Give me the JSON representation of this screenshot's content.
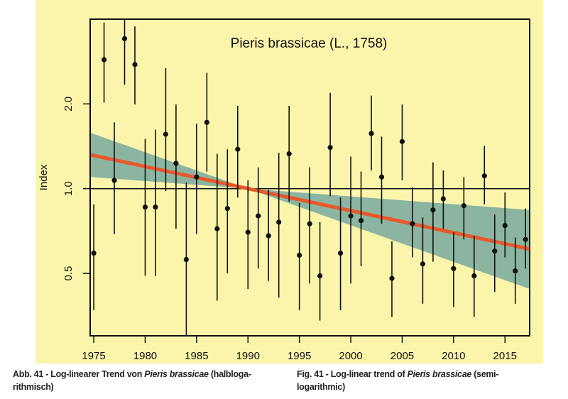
{
  "chart_data": {
    "type": "scatter",
    "title": "Pieris brassicae (L., 1758)",
    "xlabel": "",
    "ylabel": "Index",
    "y_scale": "log",
    "xlim": [
      1974.65,
      2017.4
    ],
    "ylim": [
      0.3,
      4.0
    ],
    "x_ticks": [
      1975,
      1980,
      1985,
      1990,
      1995,
      2000,
      2005,
      2010,
      2015
    ],
    "y_ticks": [
      0.5,
      1.0,
      2.0
    ],
    "y_tick_labels": [
      "0.5",
      "1.0",
      "2.0"
    ],
    "reference_line": 1.0,
    "grid": false,
    "series": [
      {
        "name": "annual index",
        "x": [
          1975,
          1976,
          1977,
          1978,
          1979,
          1980,
          1981,
          1982,
          1983,
          1984,
          1985,
          1986,
          1987,
          1988,
          1989,
          1990,
          1991,
          1992,
          1993,
          1994,
          1995,
          1996,
          1997,
          1998,
          1999,
          2000,
          2001,
          2002,
          2003,
          2004,
          2005,
          2006,
          2007,
          2008,
          2009,
          2010,
          2011,
          2012,
          2013,
          2014,
          2015,
          2016,
          2017
        ],
        "y": [
          0.59,
          2.87,
          1.07,
          3.41,
          2.76,
          0.86,
          0.86,
          1.56,
          1.23,
          0.56,
          1.1,
          1.72,
          0.72,
          0.85,
          1.38,
          0.7,
          0.8,
          0.68,
          0.76,
          1.33,
          0.58,
          0.75,
          0.49,
          1.4,
          0.59,
          0.8,
          0.77,
          1.57,
          1.1,
          0.48,
          1.47,
          0.75,
          0.54,
          0.84,
          0.92,
          0.52,
          0.87,
          0.49,
          1.11,
          0.6,
          0.74,
          0.51,
          0.66
        ],
        "upper": [
          0.88,
          3.89,
          1.72,
          4.2,
          3.77,
          1.5,
          1.62,
          2.68,
          1.99,
          1.05,
          1.7,
          2.58,
          1.33,
          1.38,
          1.97,
          1.07,
          1.19,
          0.99,
          1.34,
          1.97,
          0.89,
          1.19,
          0.76,
          2.19,
          0.93,
          1.3,
          1.15,
          2.14,
          1.53,
          0.65,
          1.99,
          1.01,
          0.79,
          1.24,
          1.16,
          0.7,
          1.1,
          0.68,
          1.42,
          0.81,
          0.97,
          0.67,
          0.85
        ],
        "lower": [
          0.37,
          2.02,
          0.69,
          2.34,
          1.99,
          0.49,
          0.49,
          0.98,
          0.72,
          0.28,
          0.69,
          1.15,
          0.4,
          0.5,
          0.93,
          0.44,
          0.52,
          0.47,
          0.41,
          0.9,
          0.37,
          0.46,
          0.34,
          0.94,
          0.37,
          0.46,
          0.53,
          1.16,
          0.75,
          0.35,
          1.07,
          0.57,
          0.39,
          0.55,
          0.72,
          0.38,
          0.66,
          0.35,
          0.88,
          0.43,
          0.57,
          0.39,
          0.52
        ]
      }
    ],
    "trend": {
      "name": "log-linear trend",
      "x": [
        1974.65,
        1990,
        2017.4
      ],
      "y": [
        1.32,
        1.0,
        0.61
      ],
      "ci_upper": [
        1.58,
        1.0,
        0.84
      ],
      "ci_lower": [
        1.1,
        1.0,
        0.44
      ]
    },
    "colors": {
      "background": "#fbf5ac",
      "trend": "#e8582a",
      "ci_band": "#8bb5a0",
      "points": "#111111"
    }
  },
  "captions": {
    "de": {
      "prefix": "Abb. 41 - Log-linearer Trend von ",
      "species": "Pieris brassicae",
      "suffix": " (halbloga-rithmisch)"
    },
    "en": {
      "prefix": "Fig. 41 - Log-linear trend of ",
      "species": "Pieris brassicae",
      "suffix": " (semi-logarithmic)"
    }
  }
}
